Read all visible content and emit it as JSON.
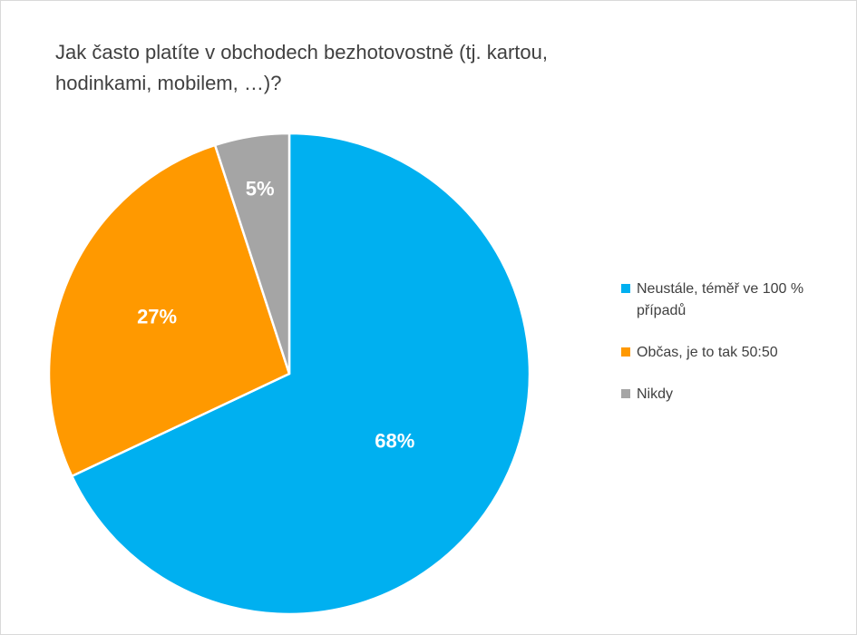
{
  "chart_data": {
    "type": "pie",
    "title": [
      "Jak často platíte v obchodech  bezhotovostně (tj. kartou,",
      "hodinkami, mobilem, …)?"
    ],
    "categories": [
      "Neustále, téměř ve 100 % případů",
      "Občas, je to tak 50:50",
      "Nikdy"
    ],
    "values": [
      68,
      27,
      5
    ],
    "data_labels": [
      "68%",
      "27%",
      "5%"
    ],
    "colors": [
      "#00b0f0",
      "#ff9900",
      "#a5a5a5"
    ],
    "legend": "right"
  }
}
